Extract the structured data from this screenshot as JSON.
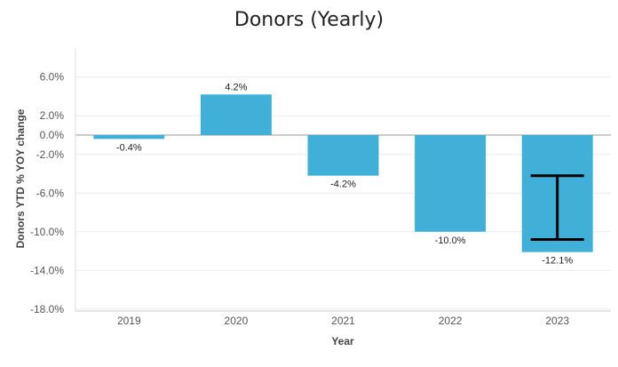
{
  "chart_data": {
    "type": "bar",
    "title": "Donors (Yearly)",
    "xlabel": "Year",
    "ylabel": "Donors YTD % YOY change",
    "categories": [
      "2019",
      "2020",
      "2021",
      "2022",
      "2023"
    ],
    "values": [
      -0.4,
      4.2,
      -4.2,
      -10.0,
      -12.1
    ],
    "value_labels": [
      "-0.4%",
      "4.2%",
      "-4.2%",
      "-10.0%",
      "-12.1%"
    ],
    "yticks": [
      6.0,
      2.0,
      0.0,
      -2.0,
      -6.0,
      -10.0,
      -14.0,
      -18.0
    ],
    "ytick_labels": [
      "6.0%",
      "2.0%",
      "0.0%",
      "-2.0%",
      "-6.0%",
      "-10.0%",
      "-14.0%",
      "-18.0%"
    ],
    "ylim": [
      -18.0,
      8.9
    ],
    "bar_color": "#41b0d8",
    "grid": true,
    "legend": false,
    "annotation": {
      "type": "range-bracket",
      "category": "2023",
      "from": -4.2,
      "to": -10.8,
      "color": "#000000"
    }
  }
}
